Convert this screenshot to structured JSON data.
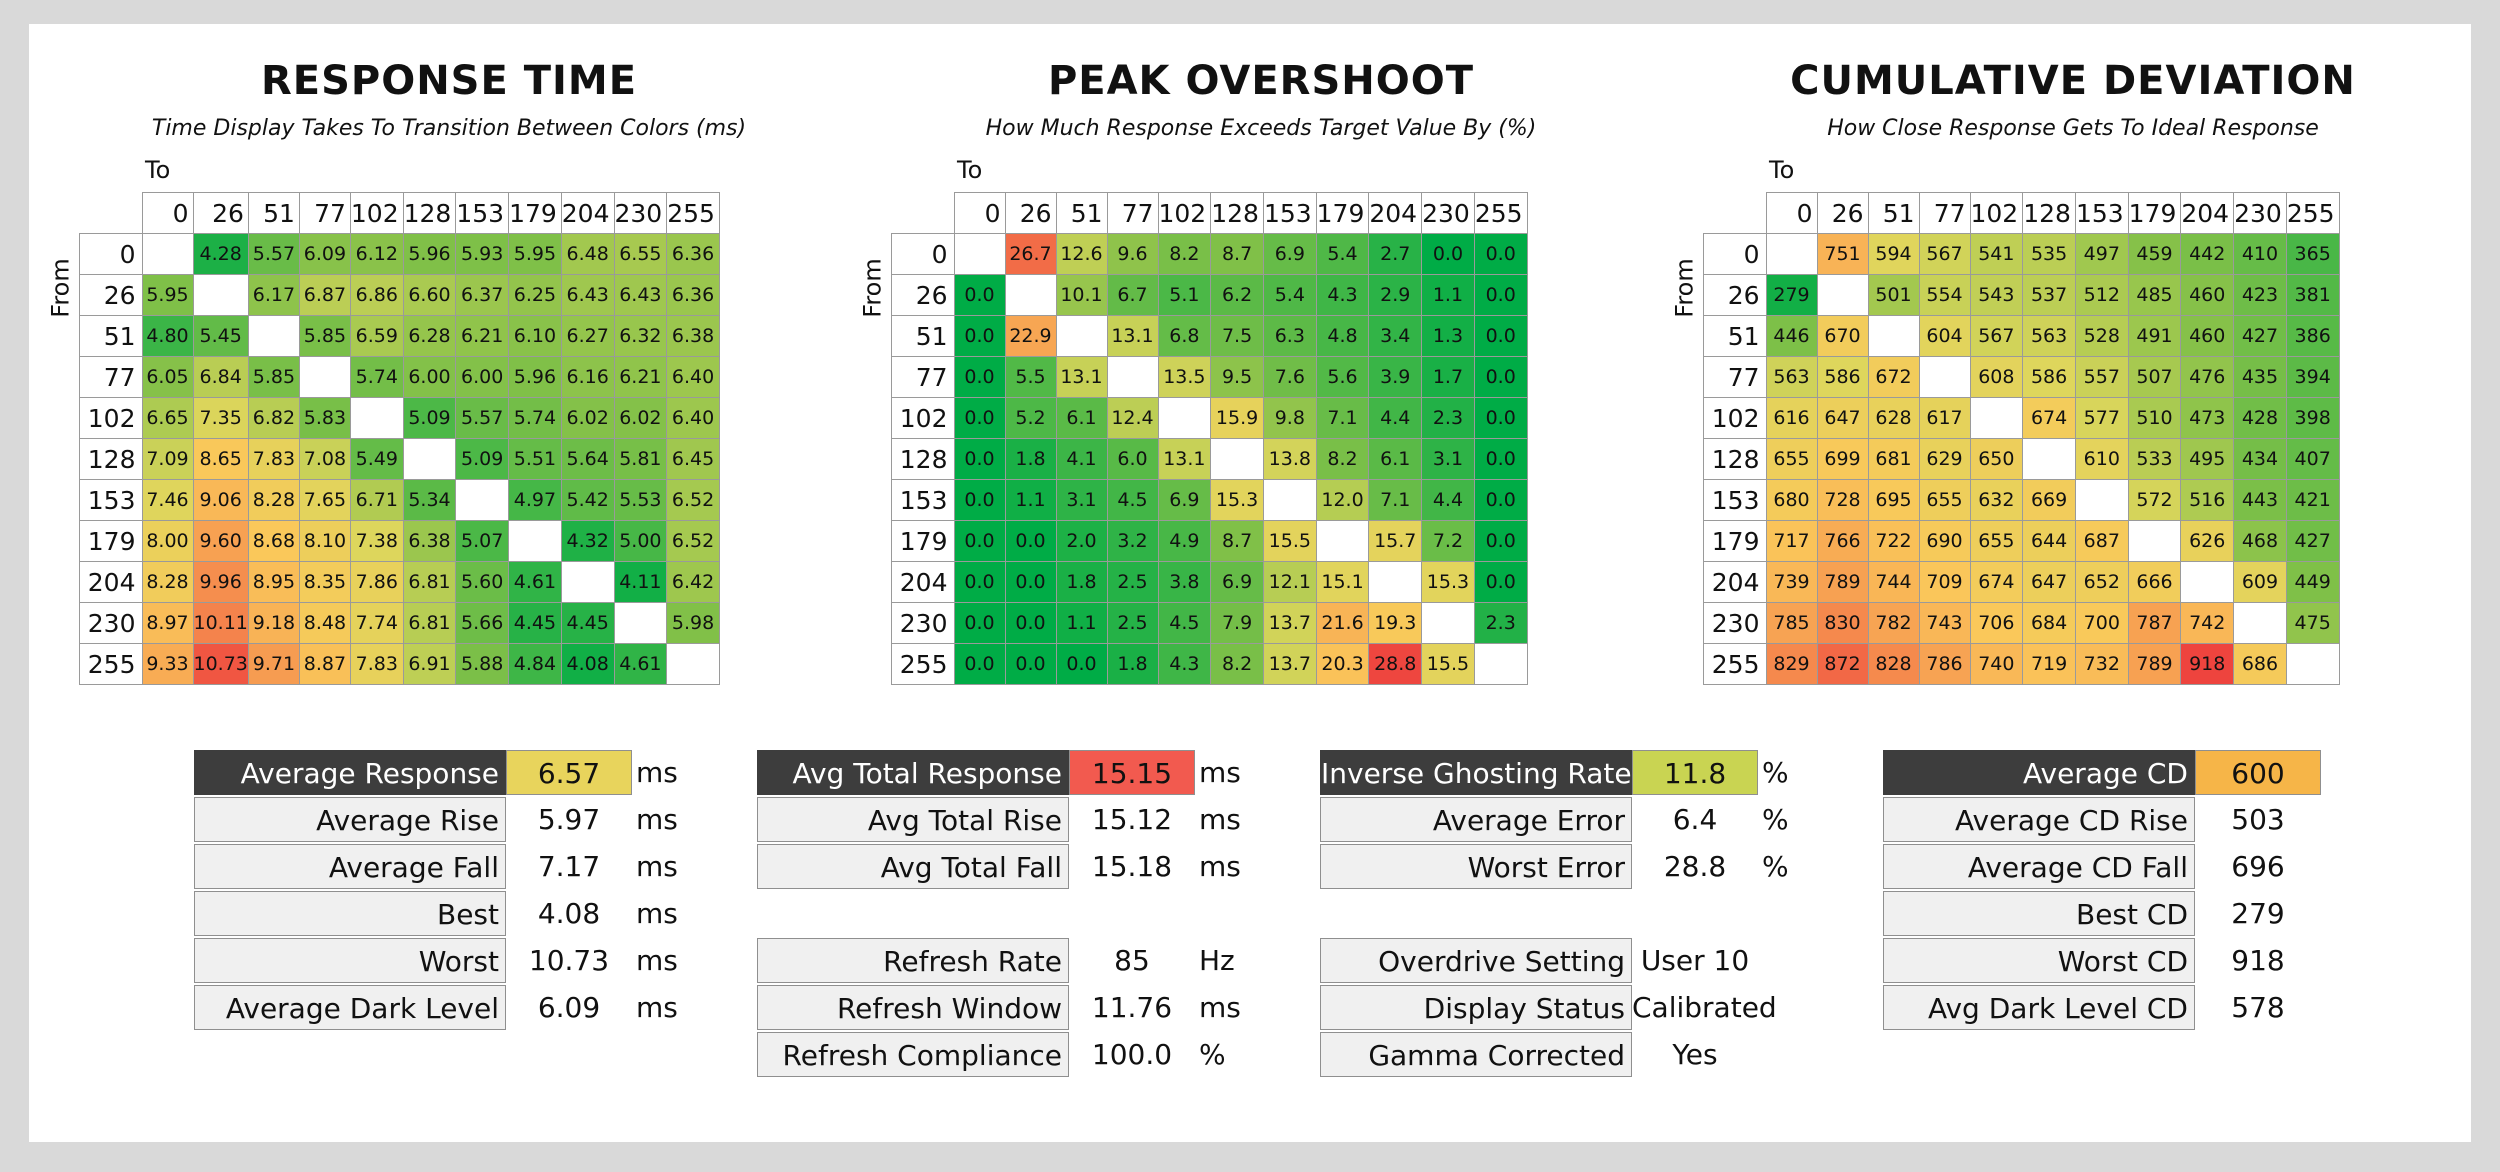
{
  "headers": [
    "0",
    "26",
    "51",
    "77",
    "102",
    "128",
    "153",
    "179",
    "204",
    "230",
    "255"
  ],
  "response_time": {
    "title": "RESPONSE TIME",
    "subtitle": "Time Display Takes To Transition Between Colors (ms)",
    "to_label": "To",
    "from_label": "From",
    "rows": [
      [
        "",
        "4.28",
        "5.57",
        "6.09",
        "6.12",
        "5.96",
        "5.93",
        "5.95",
        "6.48",
        "6.55",
        "6.36"
      ],
      [
        "5.95",
        "",
        "6.17",
        "6.87",
        "6.86",
        "6.60",
        "6.37",
        "6.25",
        "6.43",
        "6.43",
        "6.36"
      ],
      [
        "4.80",
        "5.45",
        "",
        "5.85",
        "6.59",
        "6.28",
        "6.21",
        "6.10",
        "6.27",
        "6.32",
        "6.38"
      ],
      [
        "6.05",
        "6.84",
        "5.85",
        "",
        "5.74",
        "6.00",
        "6.00",
        "5.96",
        "6.16",
        "6.21",
        "6.40"
      ],
      [
        "6.65",
        "7.35",
        "6.82",
        "5.83",
        "",
        "5.09",
        "5.57",
        "5.74",
        "6.02",
        "6.02",
        "6.40"
      ],
      [
        "7.09",
        "8.65",
        "7.83",
        "7.08",
        "5.49",
        "",
        "5.09",
        "5.51",
        "5.64",
        "5.81",
        "6.45"
      ],
      [
        "7.46",
        "9.06",
        "8.28",
        "7.65",
        "6.71",
        "5.34",
        "",
        "4.97",
        "5.42",
        "5.53",
        "6.52"
      ],
      [
        "8.00",
        "9.60",
        "8.68",
        "8.10",
        "7.38",
        "6.38",
        "5.07",
        "",
        "4.32",
        "5.00",
        "6.52"
      ],
      [
        "8.28",
        "9.96",
        "8.95",
        "8.35",
        "7.86",
        "6.81",
        "5.60",
        "4.61",
        "",
        "4.11",
        "6.42"
      ],
      [
        "8.97",
        "10.11",
        "9.18",
        "8.48",
        "7.74",
        "6.81",
        "5.66",
        "4.45",
        "4.45",
        "",
        "5.98"
      ],
      [
        "9.33",
        "10.73",
        "9.71",
        "8.87",
        "7.83",
        "6.91",
        "5.88",
        "4.84",
        "4.08",
        "4.61",
        ""
      ]
    ],
    "stats": [
      {
        "label": "Average Response",
        "value": "6.57",
        "unit": "ms",
        "dark": true,
        "color": "#e8d45c"
      },
      {
        "label": "Average Rise",
        "value": "5.97",
        "unit": "ms"
      },
      {
        "label": "Average Fall",
        "value": "7.17",
        "unit": "ms"
      },
      {
        "label": "Best",
        "value": "4.08",
        "unit": "ms"
      },
      {
        "label": "Worst",
        "value": "10.73",
        "unit": "ms"
      },
      {
        "label": "Average Dark Level",
        "value": "6.09",
        "unit": "ms"
      }
    ]
  },
  "peak_overshoot": {
    "title": "PEAK OVERSHOOT",
    "subtitle": "How Much Response Exceeds Target Value By (%)",
    "to_label": "To",
    "from_label": "From",
    "rows": [
      [
        "",
        "26.7",
        "12.6",
        "9.6",
        "8.2",
        "8.7",
        "6.9",
        "5.4",
        "2.7",
        "0.0",
        "0.0"
      ],
      [
        "0.0",
        "",
        "10.1",
        "6.7",
        "5.1",
        "6.2",
        "5.4",
        "4.3",
        "2.9",
        "1.1",
        "0.0"
      ],
      [
        "0.0",
        "22.9",
        "",
        "13.1",
        "6.8",
        "7.5",
        "6.3",
        "4.8",
        "3.4",
        "1.3",
        "0.0"
      ],
      [
        "0.0",
        "5.5",
        "13.1",
        "",
        "13.5",
        "9.5",
        "7.6",
        "5.6",
        "3.9",
        "1.7",
        "0.0"
      ],
      [
        "0.0",
        "5.2",
        "6.1",
        "12.4",
        "",
        "15.9",
        "9.8",
        "7.1",
        "4.4",
        "2.3",
        "0.0"
      ],
      [
        "0.0",
        "1.8",
        "4.1",
        "6.0",
        "13.1",
        "",
        "13.8",
        "8.2",
        "6.1",
        "3.1",
        "0.0"
      ],
      [
        "0.0",
        "1.1",
        "3.1",
        "4.5",
        "6.9",
        "15.3",
        "",
        "12.0",
        "7.1",
        "4.4",
        "0.0"
      ],
      [
        "0.0",
        "0.0",
        "2.0",
        "3.2",
        "4.9",
        "8.7",
        "15.5",
        "",
        "15.7",
        "7.2",
        "0.0"
      ],
      [
        "0.0",
        "0.0",
        "1.8",
        "2.5",
        "3.8",
        "6.9",
        "12.1",
        "15.1",
        "",
        "15.3",
        "0.0"
      ],
      [
        "0.0",
        "0.0",
        "1.1",
        "2.5",
        "4.5",
        "7.9",
        "13.7",
        "21.6",
        "19.3",
        "",
        "2.3"
      ],
      [
        "0.0",
        "0.0",
        "0.0",
        "1.8",
        "4.3",
        "8.2",
        "13.7",
        "20.3",
        "28.8",
        "15.5",
        ""
      ]
    ],
    "stats": [
      {
        "label": "Avg Total Response",
        "value": "15.15",
        "unit": "ms",
        "dark": true,
        "color": "#f25a4f"
      },
      {
        "label": "Avg Total Rise",
        "value": "15.12",
        "unit": "ms"
      },
      {
        "label": "Avg Total Fall",
        "value": "15.18",
        "unit": "ms"
      },
      {
        "gap": true
      },
      {
        "label": "Refresh Rate",
        "value": "85",
        "unit": "Hz"
      },
      {
        "label": "Refresh Window",
        "value": "11.76",
        "unit": "ms"
      },
      {
        "label": "Refresh Compliance",
        "value": "100.0",
        "unit": "%"
      }
    ]
  },
  "cumulative_deviation": {
    "title": "CUMULATIVE DEVIATION",
    "subtitle": "How Close Response Gets To Ideal Response",
    "to_label": "To",
    "from_label": "From",
    "rows": [
      [
        "",
        "751",
        "594",
        "567",
        "541",
        "535",
        "497",
        "459",
        "442",
        "410",
        "365"
      ],
      [
        "279",
        "",
        "501",
        "554",
        "543",
        "537",
        "512",
        "485",
        "460",
        "423",
        "381"
      ],
      [
        "446",
        "670",
        "",
        "604",
        "567",
        "563",
        "528",
        "491",
        "460",
        "427",
        "386"
      ],
      [
        "563",
        "586",
        "672",
        "",
        "608",
        "586",
        "557",
        "507",
        "476",
        "435",
        "394"
      ],
      [
        "616",
        "647",
        "628",
        "617",
        "",
        "674",
        "577",
        "510",
        "473",
        "428",
        "398"
      ],
      [
        "655",
        "699",
        "681",
        "629",
        "650",
        "",
        "610",
        "533",
        "495",
        "434",
        "407"
      ],
      [
        "680",
        "728",
        "695",
        "655",
        "632",
        "669",
        "",
        "572",
        "516",
        "443",
        "421"
      ],
      [
        "717",
        "766",
        "722",
        "690",
        "655",
        "644",
        "687",
        "",
        "626",
        "468",
        "427"
      ],
      [
        "739",
        "789",
        "744",
        "709",
        "674",
        "647",
        "652",
        "666",
        "",
        "609",
        "449"
      ],
      [
        "785",
        "830",
        "782",
        "743",
        "706",
        "684",
        "700",
        "787",
        "742",
        "",
        "475"
      ],
      [
        "829",
        "872",
        "828",
        "786",
        "740",
        "719",
        "732",
        "789",
        "918",
        "686",
        ""
      ]
    ],
    "stats": [
      {
        "label": "Average CD",
        "value": "600",
        "unit": "",
        "dark": true,
        "color": "#f6b548"
      },
      {
        "label": "Average CD Rise",
        "value": "503",
        "unit": ""
      },
      {
        "label": "Average CD Fall",
        "value": "696",
        "unit": ""
      },
      {
        "label": "Best CD",
        "value": "279",
        "unit": ""
      },
      {
        "label": "Worst CD",
        "value": "918",
        "unit": ""
      },
      {
        "label": "Avg Dark Level CD",
        "value": "578",
        "unit": ""
      }
    ]
  },
  "ghosting": {
    "stats": [
      {
        "label": "Inverse Ghosting Rate",
        "value": "11.8",
        "unit": "%",
        "dark": true,
        "color": "#c9d452"
      },
      {
        "label": "Average Error",
        "value": "6.4",
        "unit": "%"
      },
      {
        "label": "Worst Error",
        "value": "28.8",
        "unit": "%"
      },
      {
        "gap": true
      },
      {
        "label": "Overdrive Setting",
        "value": "User 10",
        "unit": ""
      },
      {
        "label": "Display Status",
        "value": "Calibrated",
        "unit": ""
      },
      {
        "label": "Gamma Corrected",
        "value": "Yes",
        "unit": ""
      }
    ]
  },
  "chart_data": [
    {
      "type": "heatmap",
      "title": "RESPONSE TIME",
      "subtitle": "Time Display Takes To Transition Between Colors (ms)",
      "xlabel": "To",
      "ylabel": "From",
      "x": [
        0,
        26,
        51,
        77,
        102,
        128,
        153,
        179,
        204,
        230,
        255
      ],
      "y": [
        0,
        26,
        51,
        77,
        102,
        128,
        153,
        179,
        204,
        230,
        255
      ],
      "values": [
        [
          null,
          4.28,
          5.57,
          6.09,
          6.12,
          5.96,
          5.93,
          5.95,
          6.48,
          6.55,
          6.36
        ],
        [
          5.95,
          null,
          6.17,
          6.87,
          6.86,
          6.6,
          6.37,
          6.25,
          6.43,
          6.43,
          6.36
        ],
        [
          4.8,
          5.45,
          null,
          5.85,
          6.59,
          6.28,
          6.21,
          6.1,
          6.27,
          6.32,
          6.38
        ],
        [
          6.05,
          6.84,
          5.85,
          null,
          5.74,
          6.0,
          6.0,
          5.96,
          6.16,
          6.21,
          6.4
        ],
        [
          6.65,
          7.35,
          6.82,
          5.83,
          null,
          5.09,
          5.57,
          5.74,
          6.02,
          6.02,
          6.4
        ],
        [
          7.09,
          8.65,
          7.83,
          7.08,
          5.49,
          null,
          5.09,
          5.51,
          5.64,
          5.81,
          6.45
        ],
        [
          7.46,
          9.06,
          8.28,
          7.65,
          6.71,
          5.34,
          null,
          4.97,
          5.42,
          5.53,
          6.52
        ],
        [
          8.0,
          9.6,
          8.68,
          8.1,
          7.38,
          6.38,
          5.07,
          null,
          4.32,
          5.0,
          6.52
        ],
        [
          8.28,
          9.96,
          8.95,
          8.35,
          7.86,
          6.81,
          5.6,
          4.61,
          null,
          4.11,
          6.42
        ],
        [
          8.97,
          10.11,
          9.18,
          8.48,
          7.74,
          6.81,
          5.66,
          4.45,
          4.45,
          null,
          5.98
        ],
        [
          9.33,
          10.73,
          9.71,
          8.87,
          7.83,
          6.91,
          5.88,
          4.84,
          4.08,
          4.61,
          null
        ]
      ]
    },
    {
      "type": "heatmap",
      "title": "PEAK OVERSHOOT",
      "subtitle": "How Much Response Exceeds Target Value By (%)",
      "xlabel": "To",
      "ylabel": "From",
      "x": [
        0,
        26,
        51,
        77,
        102,
        128,
        153,
        179,
        204,
        230,
        255
      ],
      "y": [
        0,
        26,
        51,
        77,
        102,
        128,
        153,
        179,
        204,
        230,
        255
      ],
      "values": [
        [
          null,
          26.7,
          12.6,
          9.6,
          8.2,
          8.7,
          6.9,
          5.4,
          2.7,
          0.0,
          0.0
        ],
        [
          0.0,
          null,
          10.1,
          6.7,
          5.1,
          6.2,
          5.4,
          4.3,
          2.9,
          1.1,
          0.0
        ],
        [
          0.0,
          22.9,
          null,
          13.1,
          6.8,
          7.5,
          6.3,
          4.8,
          3.4,
          1.3,
          0.0
        ],
        [
          0.0,
          5.5,
          13.1,
          null,
          13.5,
          9.5,
          7.6,
          5.6,
          3.9,
          1.7,
          0.0
        ],
        [
          0.0,
          5.2,
          6.1,
          12.4,
          null,
          15.9,
          9.8,
          7.1,
          4.4,
          2.3,
          0.0
        ],
        [
          0.0,
          1.8,
          4.1,
          6.0,
          13.1,
          null,
          13.8,
          8.2,
          6.1,
          3.1,
          0.0
        ],
        [
          0.0,
          1.1,
          3.1,
          4.5,
          6.9,
          15.3,
          null,
          12.0,
          7.1,
          4.4,
          0.0
        ],
        [
          0.0,
          0.0,
          2.0,
          3.2,
          4.9,
          8.7,
          15.5,
          null,
          15.7,
          7.2,
          0.0
        ],
        [
          0.0,
          0.0,
          1.8,
          2.5,
          3.8,
          6.9,
          12.1,
          15.1,
          null,
          15.3,
          0.0
        ],
        [
          0.0,
          0.0,
          1.1,
          2.5,
          4.5,
          7.9,
          13.7,
          21.6,
          19.3,
          null,
          2.3
        ],
        [
          0.0,
          0.0,
          0.0,
          1.8,
          4.3,
          8.2,
          13.7,
          20.3,
          28.8,
          15.5,
          null
        ]
      ]
    },
    {
      "type": "heatmap",
      "title": "CUMULATIVE DEVIATION",
      "subtitle": "How Close Response Gets To Ideal Response",
      "xlabel": "To",
      "ylabel": "From",
      "x": [
        0,
        26,
        51,
        77,
        102,
        128,
        153,
        179,
        204,
        230,
        255
      ],
      "y": [
        0,
        26,
        51,
        77,
        102,
        128,
        153,
        179,
        204,
        230,
        255
      ],
      "values": [
        [
          null,
          751,
          594,
          567,
          541,
          535,
          497,
          459,
          442,
          410,
          365
        ],
        [
          279,
          null,
          501,
          554,
          543,
          537,
          512,
          485,
          460,
          423,
          381
        ],
        [
          446,
          670,
          null,
          604,
          567,
          563,
          528,
          491,
          460,
          427,
          386
        ],
        [
          563,
          586,
          672,
          null,
          608,
          586,
          557,
          507,
          476,
          435,
          394
        ],
        [
          616,
          647,
          628,
          617,
          null,
          674,
          577,
          510,
          473,
          428,
          398
        ],
        [
          655,
          699,
          681,
          629,
          650,
          null,
          610,
          533,
          495,
          434,
          407
        ],
        [
          680,
          728,
          695,
          655,
          632,
          669,
          null,
          572,
          516,
          443,
          421
        ],
        [
          717,
          766,
          722,
          690,
          655,
          644,
          687,
          null,
          626,
          468,
          427
        ],
        [
          739,
          789,
          744,
          709,
          674,
          647,
          652,
          666,
          null,
          609,
          449
        ],
        [
          785,
          830,
          782,
          743,
          706,
          684,
          700,
          787,
          742,
          null,
          475
        ],
        [
          829,
          872,
          828,
          786,
          740,
          719,
          732,
          789,
          918,
          686,
          null
        ]
      ]
    }
  ]
}
